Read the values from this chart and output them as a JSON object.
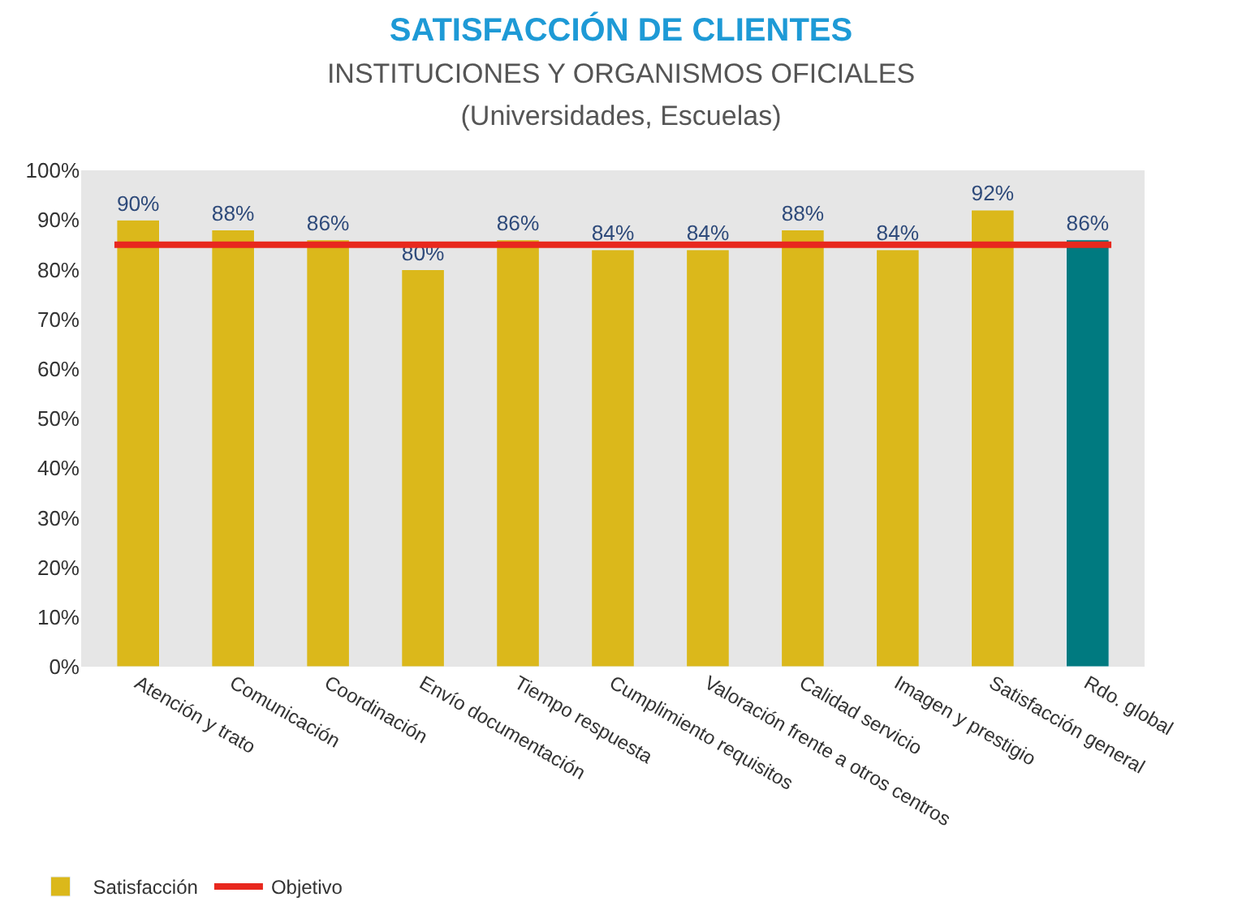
{
  "chart_data": {
    "type": "bar",
    "title": "SATISFACCIÓN DE CLIENTES",
    "subtitle": "INSTITUCIONES Y ORGANISMOS OFICIALES\n(Universidades, Escuelas)",
    "categories": [
      "Atención y trato",
      "Comunicación",
      "Coordinación",
      "Envío documentación",
      "Tiempo respuesta",
      "Cumplimiento requisitos",
      "Valoración frente a otros centros",
      "Calidad servicio",
      "Imagen y prestigio",
      "Satisfacción general",
      "Rdo. global"
    ],
    "series": [
      {
        "name": "Satisfacción",
        "colors": [
          "#dbb81b",
          "#dbb81b",
          "#dbb81b",
          "#dbb81b",
          "#dbb81b",
          "#dbb81b",
          "#dbb81b",
          "#dbb81b",
          "#dbb81b",
          "#dbb81b",
          "#007a80"
        ],
        "values": [
          90,
          88,
          86,
          80,
          86,
          84,
          84,
          88,
          84,
          92,
          86
        ],
        "value_labels": [
          "90%",
          "88%",
          "86%",
          "80%",
          "86%",
          "84%",
          "84%",
          "88%",
          "84%",
          "92%",
          "86%"
        ]
      }
    ],
    "ref_lines": [
      {
        "axis": "y",
        "value": 85,
        "label": "Objetivo",
        "color": "#e8281e"
      }
    ],
    "ylim": [
      0,
      100
    ],
    "yticks": [
      {
        "value": 0,
        "label": "0%"
      },
      {
        "value": 10,
        "label": "10%"
      },
      {
        "value": 20,
        "label": "20%"
      },
      {
        "value": 30,
        "label": "30%"
      },
      {
        "value": 40,
        "label": "40%"
      },
      {
        "value": 50,
        "label": "50%"
      },
      {
        "value": 60,
        "label": "60%"
      },
      {
        "value": 70,
        "label": "70%"
      },
      {
        "value": 80,
        "label": "80%"
      },
      {
        "value": 90,
        "label": "90%"
      },
      {
        "value": 100,
        "label": "100%"
      }
    ],
    "grid": false,
    "legend": "bottom left"
  }
}
